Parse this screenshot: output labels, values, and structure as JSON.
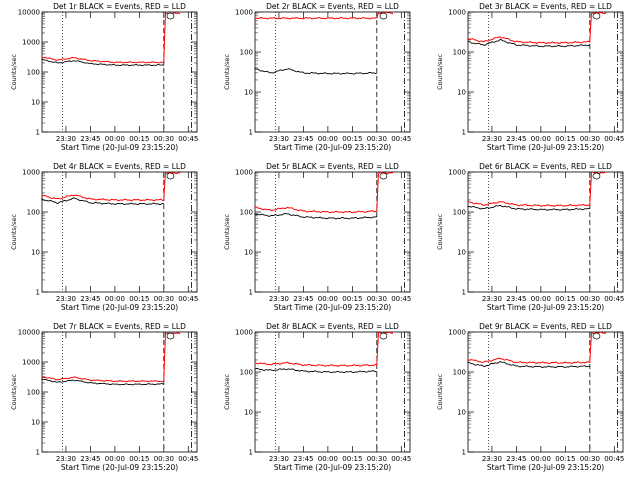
{
  "chart_data": [
    {
      "type": "line",
      "title": "Det 1r BLACK = Events, RED = LLD",
      "xlabel": "Start Time (20-Jul-09 23:15:20)",
      "ylabel": "Counts/sec",
      "yscale": "log",
      "ylim": [
        1,
        10000
      ],
      "y_ticks": [
        "1",
        "10",
        "100",
        "1000",
        "10000"
      ],
      "x_ticks": [
        "23:30",
        "23:45",
        "00:00",
        "00:15",
        "00:30",
        "00:45"
      ],
      "grid": false,
      "legend": "none",
      "series": [
        {
          "color": "#000000",
          "x": [
            "23:15",
            "23:25",
            "23:35",
            "23:45",
            "00:00",
            "00:15",
            "00:30"
          ],
          "values": [
            260,
            200,
            240,
            190,
            170,
            170,
            170
          ]
        },
        {
          "color": "#ff0000",
          "x": [
            "23:15",
            "23:25",
            "23:35",
            "23:45",
            "00:00",
            "00:15",
            "00:30",
            "00:31",
            "00:35",
            "00:40"
          ],
          "values": [
            320,
            250,
            300,
            240,
            210,
            210,
            210,
            9000,
            9000,
            9000
          ]
        }
      ]
    },
    {
      "type": "line",
      "title": "Det 2r BLACK = Events, RED = LLD",
      "xlabel": "Start Time (20-Jul-09 23:15:20)",
      "ylabel": "Counts/sec",
      "yscale": "log",
      "ylim": [
        1,
        1000
      ],
      "y_ticks": [
        "1",
        "10",
        "100",
        "1000"
      ],
      "x_ticks": [
        "23:30",
        "23:45",
        "00:00",
        "00:15",
        "00:30",
        "00:45"
      ],
      "grid": false,
      "legend": "none",
      "series": [
        {
          "color": "#000000",
          "x": [
            "23:15",
            "23:25",
            "23:35",
            "23:45",
            "00:00",
            "00:15",
            "00:30"
          ],
          "values": [
            38,
            30,
            38,
            30,
            29,
            29,
            30
          ]
        },
        {
          "color": "#ff0000",
          "x": [
            "23:15",
            "23:25",
            "23:35",
            "23:45",
            "00:00",
            "00:15",
            "00:30",
            "00:31",
            "00:35",
            "00:40"
          ],
          "values": [
            700,
            700,
            700,
            700,
            700,
            700,
            700,
            950,
            950,
            950
          ]
        }
      ]
    },
    {
      "type": "line",
      "title": "Det 3r BLACK = Events, RED = LLD",
      "xlabel": "Start Time (20-Jul-09 23:15:20)",
      "ylabel": "Counts/sec",
      "yscale": "log",
      "ylim": [
        1,
        1000
      ],
      "y_ticks": [
        "1",
        "10",
        "100",
        "1000"
      ],
      "x_ticks": [
        "23:30",
        "23:45",
        "00:00",
        "00:15",
        "00:30",
        "00:45"
      ],
      "grid": false,
      "legend": "none",
      "series": [
        {
          "color": "#000000",
          "x": [
            "23:15",
            "23:25",
            "23:35",
            "23:45",
            "00:00",
            "00:15",
            "00:30"
          ],
          "values": [
            180,
            150,
            200,
            150,
            140,
            140,
            150
          ]
        },
        {
          "color": "#ff0000",
          "x": [
            "23:15",
            "23:25",
            "23:35",
            "23:45",
            "00:00",
            "00:15",
            "00:30",
            "00:31",
            "00:35",
            "00:40"
          ],
          "values": [
            220,
            180,
            240,
            180,
            170,
            170,
            180,
            950,
            950,
            950
          ]
        }
      ]
    },
    {
      "type": "line",
      "title": "Det 4r BLACK = Events, RED = LLD",
      "xlabel": "Start Time (20-Jul-09 23:15:20)",
      "ylabel": "Counts/sec",
      "yscale": "log",
      "ylim": [
        1,
        1000
      ],
      "y_ticks": [
        "1",
        "10",
        "100",
        "1000"
      ],
      "x_ticks": [
        "23:30",
        "23:45",
        "00:00",
        "00:15",
        "00:30",
        "00:45"
      ],
      "grid": false,
      "legend": "none",
      "series": [
        {
          "color": "#000000",
          "x": [
            "23:15",
            "23:25",
            "23:35",
            "23:45",
            "00:00",
            "00:15",
            "00:30"
          ],
          "values": [
            210,
            170,
            220,
            170,
            160,
            160,
            160
          ]
        },
        {
          "color": "#ff0000",
          "x": [
            "23:15",
            "23:25",
            "23:35",
            "23:45",
            "00:00",
            "00:15",
            "00:30",
            "00:31",
            "00:35",
            "00:40"
          ],
          "values": [
            260,
            210,
            270,
            210,
            200,
            200,
            200,
            950,
            950,
            950
          ]
        }
      ]
    },
    {
      "type": "line",
      "title": "Det 5r BLACK = Events, RED = LLD",
      "xlabel": "Start Time (20-Jul-09 23:15:20)",
      "ylabel": "Counts/sec",
      "yscale": "log",
      "ylim": [
        1,
        1000
      ],
      "y_ticks": [
        "1",
        "10",
        "100",
        "1000"
      ],
      "x_ticks": [
        "23:30",
        "23:45",
        "00:00",
        "00:15",
        "00:30",
        "00:45"
      ],
      "grid": false,
      "legend": "none",
      "series": [
        {
          "color": "#000000",
          "x": [
            "23:15",
            "23:25",
            "23:35",
            "23:45",
            "00:00",
            "00:15",
            "00:30"
          ],
          "values": [
            90,
            80,
            90,
            75,
            70,
            70,
            75
          ]
        },
        {
          "color": "#ff0000",
          "x": [
            "23:15",
            "23:25",
            "23:35",
            "23:45",
            "00:00",
            "00:15",
            "00:30",
            "00:31",
            "00:35",
            "00:40"
          ],
          "values": [
            130,
            110,
            130,
            105,
            100,
            100,
            105,
            950,
            950,
            950
          ]
        }
      ]
    },
    {
      "type": "line",
      "title": "Det 6r BLACK = Events, RED = LLD",
      "xlabel": "Start Time (20-Jul-09 23:15:20)",
      "ylabel": "Counts/sec",
      "yscale": "log",
      "ylim": [
        1,
        1000
      ],
      "y_ticks": [
        "1",
        "10",
        "100",
        "1000"
      ],
      "x_ticks": [
        "23:30",
        "23:45",
        "00:00",
        "00:15",
        "00:30",
        "00:45"
      ],
      "grid": false,
      "legend": "none",
      "series": [
        {
          "color": "#000000",
          "x": [
            "23:15",
            "23:25",
            "23:35",
            "23:45",
            "00:00",
            "00:15",
            "00:30"
          ],
          "values": [
            140,
            120,
            145,
            120,
            115,
            115,
            120
          ]
        },
        {
          "color": "#ff0000",
          "x": [
            "23:15",
            "23:25",
            "23:35",
            "23:45",
            "00:00",
            "00:15",
            "00:30",
            "00:31",
            "00:35",
            "00:40"
          ],
          "values": [
            180,
            150,
            180,
            150,
            145,
            145,
            150,
            950,
            950,
            950
          ]
        }
      ]
    },
    {
      "type": "line",
      "title": "Det 7r BLACK = Events, RED = LLD",
      "xlabel": "Start Time (20-Jul-09 23:15:20)",
      "ylabel": "Counts/sec",
      "yscale": "log",
      "ylim": [
        1,
        10000
      ],
      "y_ticks": [
        "1",
        "10",
        "100",
        "1000",
        "10000"
      ],
      "x_ticks": [
        "23:30",
        "23:45",
        "00:00",
        "00:15",
        "00:30",
        "00:45"
      ],
      "grid": false,
      "legend": "none",
      "series": [
        {
          "color": "#000000",
          "x": [
            "23:15",
            "23:25",
            "23:35",
            "23:45",
            "00:00",
            "00:15",
            "00:30"
          ],
          "values": [
            270,
            210,
            250,
            200,
            180,
            180,
            185
          ]
        },
        {
          "color": "#ff0000",
          "x": [
            "23:15",
            "23:25",
            "23:35",
            "23:45",
            "00:00",
            "00:15",
            "00:30",
            "00:31",
            "00:35",
            "00:40"
          ],
          "values": [
            330,
            260,
            310,
            250,
            230,
            230,
            230,
            9000,
            9000,
            9000
          ]
        }
      ]
    },
    {
      "type": "line",
      "title": "Det 8r BLACK = Events, RED = LLD",
      "xlabel": "Start Time (20-Jul-09 23:15:20)",
      "ylabel": "Counts/sec",
      "yscale": "log",
      "ylim": [
        1,
        1000
      ],
      "y_ticks": [
        "1",
        "10",
        "100",
        "1000"
      ],
      "x_ticks": [
        "23:30",
        "23:45",
        "00:00",
        "00:15",
        "00:30",
        "00:45"
      ],
      "grid": false,
      "legend": "none",
      "series": [
        {
          "color": "#000000",
          "x": [
            "23:15",
            "23:25",
            "23:35",
            "23:45",
            "00:00",
            "00:15",
            "00:30"
          ],
          "values": [
            120,
            110,
            120,
            105,
            100,
            100,
            105
          ]
        },
        {
          "color": "#ff0000",
          "x": [
            "23:15",
            "23:25",
            "23:35",
            "23:45",
            "00:00",
            "00:15",
            "00:30",
            "00:31",
            "00:35",
            "00:40"
          ],
          "values": [
            170,
            155,
            170,
            150,
            145,
            145,
            150,
            950,
            950,
            950
          ]
        }
      ]
    },
    {
      "type": "line",
      "title": "Det 9r BLACK = Events, RED = LLD",
      "xlabel": "Start Time (20-Jul-09 23:15:20)",
      "ylabel": "Counts/sec",
      "yscale": "log",
      "ylim": [
        1,
        1000
      ],
      "y_ticks": [
        "1",
        "10",
        "100",
        "1000"
      ],
      "x_ticks": [
        "23:30",
        "23:45",
        "00:00",
        "00:15",
        "00:30",
        "00:45"
      ],
      "grid": false,
      "legend": "none",
      "series": [
        {
          "color": "#000000",
          "x": [
            "23:15",
            "23:25",
            "23:35",
            "23:45",
            "00:00",
            "00:15",
            "00:30"
          ],
          "values": [
            170,
            140,
            180,
            140,
            135,
            135,
            140
          ]
        },
        {
          "color": "#ff0000",
          "x": [
            "23:15",
            "23:25",
            "23:35",
            "23:45",
            "00:00",
            "00:15",
            "00:30",
            "00:31",
            "00:35",
            "00:40"
          ],
          "values": [
            210,
            175,
            220,
            175,
            170,
            170,
            175,
            950,
            950,
            950
          ]
        }
      ]
    }
  ]
}
